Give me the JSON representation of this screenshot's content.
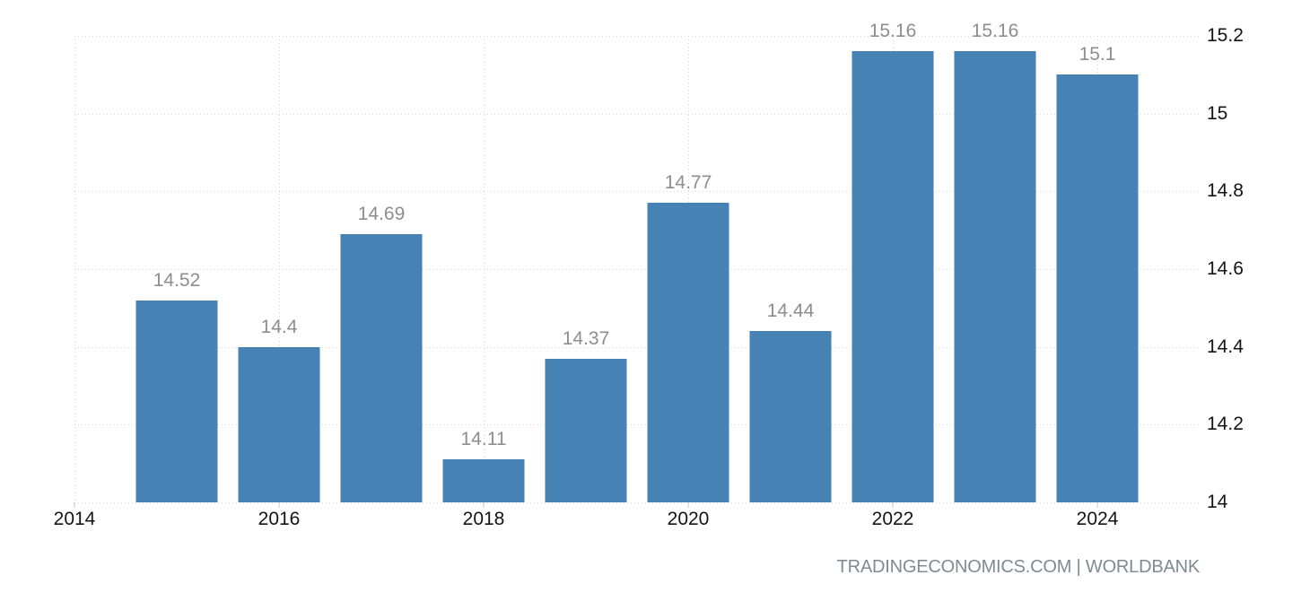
{
  "footer": {
    "text": "TRADINGECONOMICS.COM | WORLDBANK"
  },
  "chart_data": {
    "type": "bar",
    "title": "",
    "xlabel": "",
    "ylabel": "",
    "x": [
      2015,
      2016,
      2017,
      2018,
      2019,
      2020,
      2021,
      2022,
      2023,
      2024
    ],
    "values": [
      14.52,
      14.4,
      14.69,
      14.11,
      14.37,
      14.77,
      14.44,
      15.16,
      15.16,
      15.1
    ],
    "value_labels": [
      "14.52",
      "14.4",
      "14.69",
      "14.11",
      "14.37",
      "14.77",
      "14.44",
      "15.16",
      "15.16",
      "15.1"
    ],
    "x_tick_values": [
      2014,
      2016,
      2018,
      2020,
      2022,
      2024
    ],
    "x_tick_labels": [
      "2014",
      "2016",
      "2018",
      "2020",
      "2022",
      "2024"
    ],
    "y_tick_values": [
      15.2,
      15,
      14.8,
      14.6,
      14.4,
      14.2,
      14
    ],
    "y_tick_labels": [
      "15.2",
      "15",
      "14.8",
      "14.6",
      "14.4",
      "14.2",
      "14"
    ],
    "xlim": [
      2014,
      2025
    ],
    "ylim": [
      14,
      15.2
    ],
    "grid": "dotted",
    "legend": "none",
    "y_axis_side": "right",
    "colors": {
      "bar": "#4682b4",
      "grid": "#d6d6d6",
      "axis_text": "#141414",
      "value_text": "#8d8d8d",
      "footer_text": "#7f8a93",
      "tick": "#c9c9c9",
      "background": "#ffffff"
    }
  }
}
